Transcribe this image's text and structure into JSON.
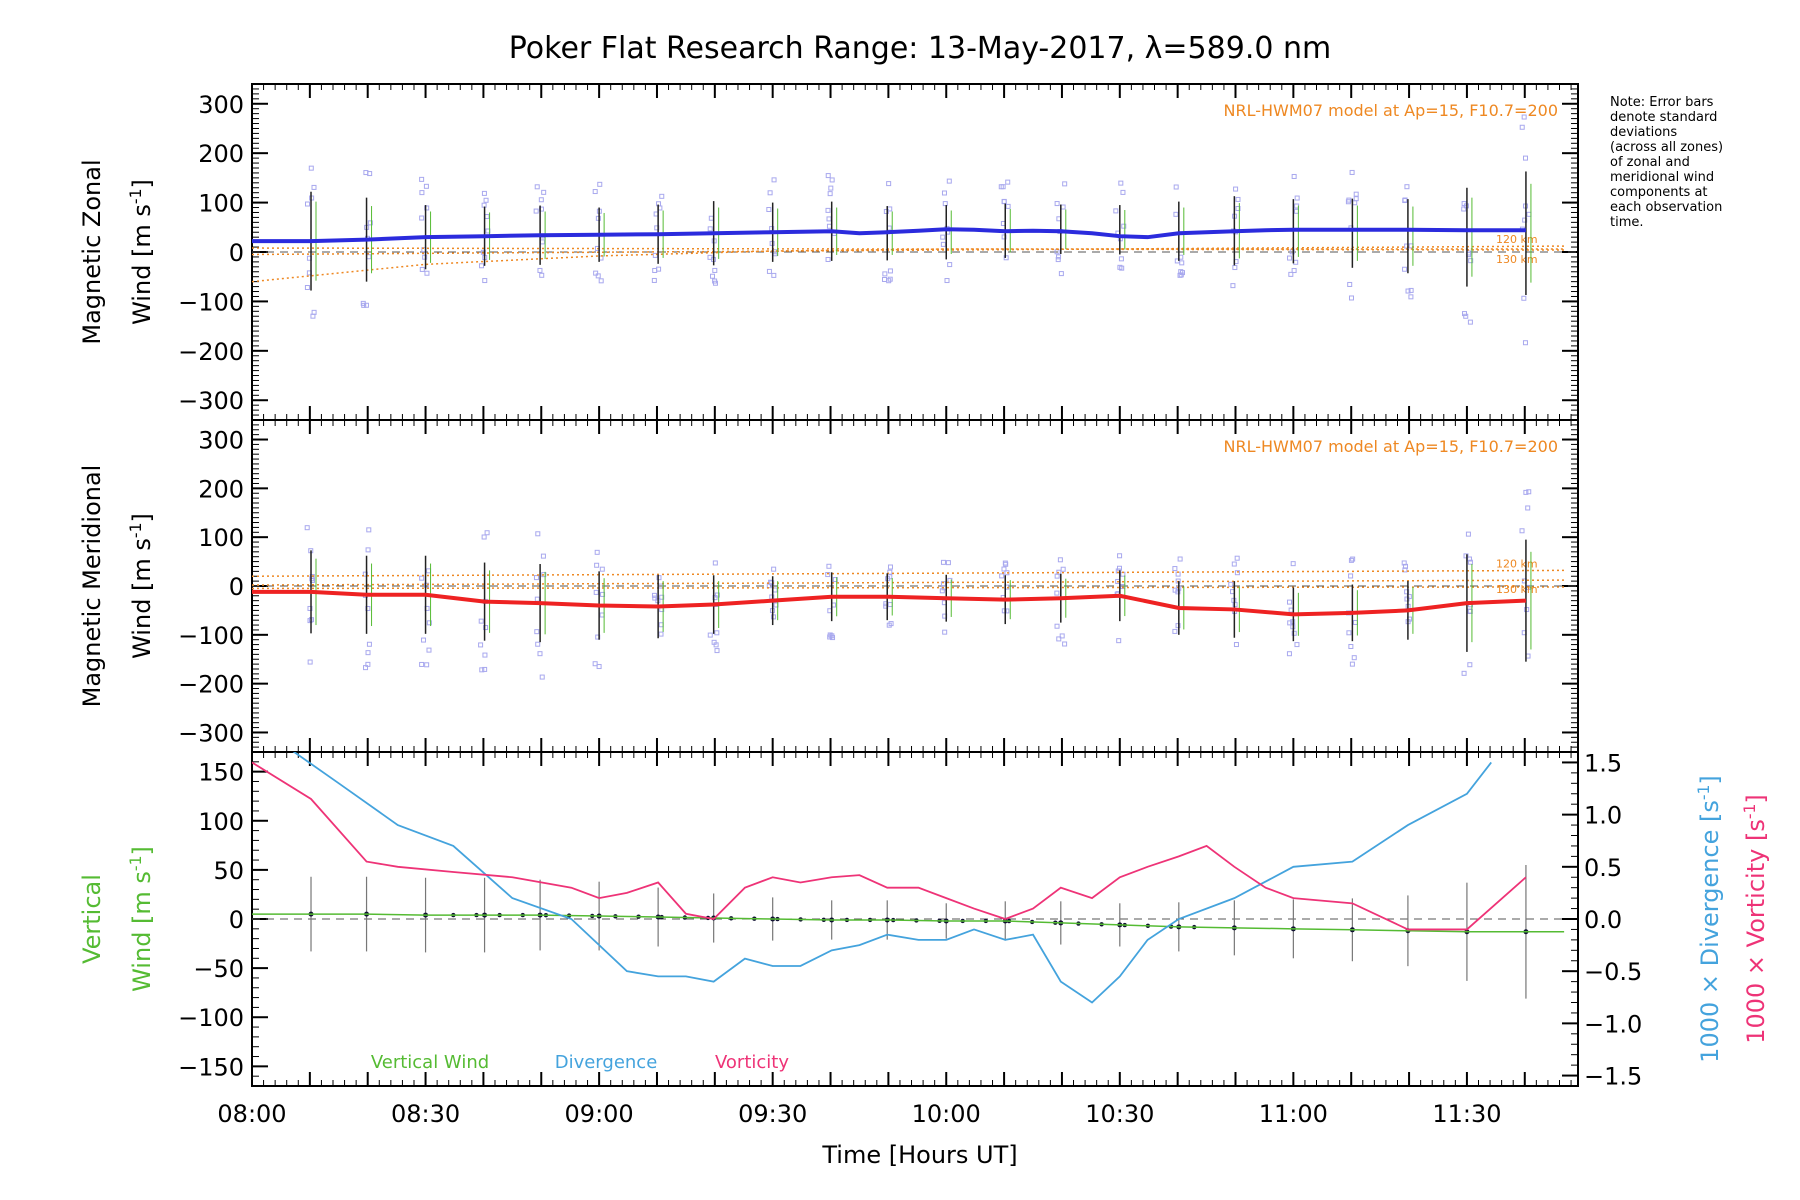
{
  "title": "Poker Flat Research Range: 13-May-2017, λ=589.0 nm",
  "note_lines": [
    "Note: Error bars",
    "denote standard",
    "deviations",
    "(across all zones)",
    "of zonal and",
    "meridional wind",
    "components at",
    "each observation",
    "time."
  ],
  "colors": {
    "zonal": "#2b2bdd",
    "meridional": "#ee2222",
    "vertical": "#55bb33",
    "divergence": "#44a3dd",
    "vorticity": "#ee3377",
    "model": "#ee8822",
    "scatter": "#a8a8ee"
  },
  "time_ticks": [
    "08:00",
    "08:30",
    "09:00",
    "09:30",
    "10:00",
    "10:30",
    "11:00",
    "11:30"
  ],
  "time_ticks_hours": [
    8.0,
    8.5,
    9.0,
    9.5,
    10.0,
    10.5,
    11.0,
    11.5
  ],
  "xlabel": "Time [Hours UT]",
  "chart_data": [
    {
      "type": "line",
      "panel": "zonal",
      "ylabel_line1": "Magnetic Zonal",
      "ylabel_line2": "Wind [m s",
      "ylabel_sup": "-1",
      "ylabel_close": "]",
      "ylim": [
        -340,
        340
      ],
      "yticks": [
        -300,
        -200,
        -100,
        0,
        100,
        200,
        300
      ],
      "ytick_labels": [
        "−300",
        "−200",
        "−100",
        "0",
        "100",
        "200",
        "300"
      ],
      "model_label": "NRL-HWM07 model at Ap=15, F10.7=200",
      "model_alt_labels": [
        "120 km",
        "130 km"
      ],
      "series": [
        {
          "role": "mean",
          "x": [
            8.0,
            8.17,
            8.33,
            8.5,
            8.67,
            8.83,
            9.0,
            9.17,
            9.33,
            9.5,
            9.67,
            9.75,
            9.83,
            9.92,
            10.0,
            10.08,
            10.17,
            10.25,
            10.33,
            10.42,
            10.5,
            10.58,
            10.67,
            10.75,
            10.83,
            10.92,
            11.0,
            11.17,
            11.33,
            11.5,
            11.67
          ],
          "y": [
            22,
            22,
            25,
            30,
            32,
            34,
            35,
            36,
            38,
            40,
            42,
            38,
            40,
            43,
            46,
            45,
            42,
            43,
            42,
            38,
            32,
            30,
            38,
            40,
            42,
            44,
            45,
            45,
            45,
            44,
            44
          ]
        },
        {
          "role": "model-120km",
          "x": [
            8.0,
            11.78
          ],
          "y": [
            -5,
            12
          ]
        },
        {
          "role": "model-130km",
          "x": [
            8.0,
            11.78
          ],
          "y": [
            8,
            4
          ]
        },
        {
          "role": "model-low",
          "x": [
            8.0,
            8.5,
            9.0,
            9.5,
            10.0,
            10.5,
            11.0,
            11.78
          ],
          "y": [
            -60,
            -25,
            -8,
            2,
            6,
            6,
            6,
            6
          ]
        }
      ],
      "errorbars": {
        "x": [
          8.17,
          8.33,
          8.5,
          8.67,
          8.83,
          9.0,
          9.17,
          9.33,
          9.5,
          9.67,
          9.83,
          10.0,
          10.17,
          10.33,
          10.5,
          10.67,
          10.83,
          11.0,
          11.17,
          11.33,
          11.5,
          11.67
        ],
        "halfwidth": [
          100,
          85,
          65,
          60,
          60,
          55,
          60,
          65,
          60,
          60,
          55,
          55,
          55,
          50,
          50,
          60,
          70,
          65,
          70,
          75,
          100,
          125
        ]
      }
    },
    {
      "type": "line",
      "panel": "meridional",
      "ylabel_line1": "Magnetic Meridional",
      "ylabel_line2": "Wind [m s",
      "ylabel_sup": "-1",
      "ylabel_close": "]",
      "ylim": [
        -340,
        340
      ],
      "yticks": [
        -300,
        -200,
        -100,
        0,
        100,
        200,
        300
      ],
      "ytick_labels": [
        "−300",
        "−200",
        "−100",
        "0",
        "100",
        "200",
        "300"
      ],
      "model_label": "NRL-HWM07 model at Ap=15, F10.7=200",
      "model_alt_labels": [
        "120 km",
        "130 km"
      ],
      "series": [
        {
          "role": "mean",
          "x": [
            8.0,
            8.17,
            8.33,
            8.5,
            8.67,
            8.83,
            9.0,
            9.17,
            9.33,
            9.5,
            9.67,
            9.83,
            10.0,
            10.17,
            10.33,
            10.5,
            10.67,
            10.83,
            11.0,
            11.17,
            11.33,
            11.5,
            11.67
          ],
          "y": [
            -12,
            -12,
            -18,
            -18,
            -32,
            -35,
            -40,
            -42,
            -38,
            -30,
            -22,
            -22,
            -25,
            -28,
            -25,
            -20,
            -45,
            -48,
            -58,
            -55,
            -50,
            -35,
            -30
          ]
        },
        {
          "role": "model-120km",
          "x": [
            8.0,
            11.78
          ],
          "y": [
            20,
            32
          ]
        },
        {
          "role": "model-130km",
          "x": [
            8.0,
            11.78
          ],
          "y": [
            2,
            12
          ]
        },
        {
          "role": "model-low",
          "x": [
            8.0,
            11.78
          ],
          "y": [
            -5,
            -2
          ]
        }
      ],
      "errorbars": {
        "x": [
          8.17,
          8.33,
          8.5,
          8.67,
          8.83,
          9.0,
          9.17,
          9.33,
          9.5,
          9.67,
          9.83,
          10.0,
          10.17,
          10.33,
          10.5,
          10.67,
          10.83,
          11.0,
          11.17,
          11.33,
          11.5,
          11.67
        ],
        "halfwidth": [
          85,
          80,
          80,
          80,
          80,
          70,
          65,
          60,
          50,
          50,
          48,
          48,
          50,
          50,
          52,
          55,
          58,
          55,
          58,
          60,
          100,
          125
        ]
      }
    },
    {
      "type": "line",
      "panel": "vertical",
      "ylabel_line1": "Vertical",
      "ylabel_line2": "Wind [m s",
      "ylabel_sup": "-1",
      "ylabel_close": "]",
      "ylim": [
        -170,
        170
      ],
      "yticks": [
        -150,
        -100,
        -50,
        0,
        50,
        100,
        150
      ],
      "ytick_labels": [
        "−150",
        "−100",
        "−50",
        "0",
        "50",
        "100",
        "150"
      ],
      "y2label_div": "1000 × Divergence [s",
      "y2label_vort": "1000 × Vorticity [s",
      "y2label_sup": "-1",
      "y2label_close": "]",
      "y2lim": [
        -1.6,
        1.6
      ],
      "y2ticks": [
        -1.5,
        -1.0,
        -0.5,
        0.0,
        0.5,
        1.0,
        1.5
      ],
      "y2tick_labels": [
        "−1.5",
        "−1.0",
        "−0.5",
        "0.0",
        "0.5",
        "1.0",
        "1.5"
      ],
      "legend": [
        "Vertical Wind",
        "Divergence",
        "Vorticity"
      ],
      "series": [
        {
          "name": "Vertical Wind",
          "axis": "left",
          "x": [
            8.0,
            8.17,
            8.33,
            8.5,
            8.67,
            8.83,
            9.0,
            9.17,
            9.33,
            9.5,
            9.67,
            9.83,
            10.0,
            10.17,
            10.33,
            10.5,
            10.67,
            10.83,
            11.0,
            11.17,
            11.33,
            11.5,
            11.67,
            11.78
          ],
          "y": [
            5,
            5,
            5,
            4,
            4,
            4,
            3,
            2,
            1,
            0,
            -1,
            -1,
            -2,
            -2,
            -4,
            -6,
            -8,
            -9,
            -10,
            -11,
            -12,
            -13,
            -13,
            -13
          ]
        },
        {
          "name": "Divergence",
          "axis": "right",
          "x": [
            8.1,
            8.25,
            8.42,
            8.58,
            8.75,
            8.92,
            9.08,
            9.17,
            9.25,
            9.33,
            9.42,
            9.5,
            9.58,
            9.67,
            9.75,
            9.83,
            9.92,
            10.0,
            10.08,
            10.17,
            10.25,
            10.33,
            10.42,
            10.5,
            10.58,
            10.67,
            10.83,
            11.0,
            11.17,
            11.33,
            11.5,
            11.57
          ],
          "y": [
            1.65,
            1.3,
            0.9,
            0.7,
            0.2,
            0.0,
            -0.5,
            -0.55,
            -0.55,
            -0.6,
            -0.38,
            -0.45,
            -0.45,
            -0.3,
            -0.25,
            -0.15,
            -0.2,
            -0.2,
            -0.1,
            -0.2,
            -0.15,
            -0.6,
            -0.8,
            -0.55,
            -0.2,
            0.0,
            0.2,
            0.5,
            0.55,
            0.9,
            1.2,
            1.5
          ]
        },
        {
          "name": "Vorticity",
          "axis": "right",
          "x": [
            8.0,
            8.17,
            8.33,
            8.42,
            8.58,
            8.75,
            8.92,
            9.0,
            9.08,
            9.17,
            9.25,
            9.33,
            9.42,
            9.5,
            9.58,
            9.67,
            9.75,
            9.83,
            9.92,
            10.0,
            10.08,
            10.17,
            10.25,
            10.33,
            10.42,
            10.5,
            10.58,
            10.67,
            10.75,
            10.83,
            10.92,
            11.0,
            11.17,
            11.33,
            11.5,
            11.67
          ],
          "y": [
            1.5,
            1.15,
            0.55,
            0.5,
            0.45,
            0.4,
            0.3,
            0.2,
            0.25,
            0.35,
            0.05,
            0.0,
            0.3,
            0.4,
            0.35,
            0.4,
            0.42,
            0.3,
            0.3,
            0.2,
            0.1,
            0.0,
            0.1,
            0.3,
            0.2,
            0.4,
            0.5,
            0.6,
            0.7,
            0.5,
            0.3,
            0.2,
            0.15,
            -0.1,
            -0.1,
            0.4
          ]
        }
      ],
      "errorbars": {
        "x": [
          8.17,
          8.33,
          8.5,
          8.67,
          8.83,
          9.0,
          9.17,
          9.33,
          9.5,
          9.67,
          9.83,
          10.0,
          10.17,
          10.33,
          10.5,
          10.67,
          10.83,
          11.0,
          11.17,
          11.33,
          11.5,
          11.67
        ],
        "halfwidth": [
          38,
          38,
          38,
          38,
          36,
          35,
          30,
          25,
          22,
          20,
          20,
          18,
          20,
          22,
          22,
          25,
          28,
          30,
          32,
          36,
          50,
          68
        ]
      }
    }
  ]
}
